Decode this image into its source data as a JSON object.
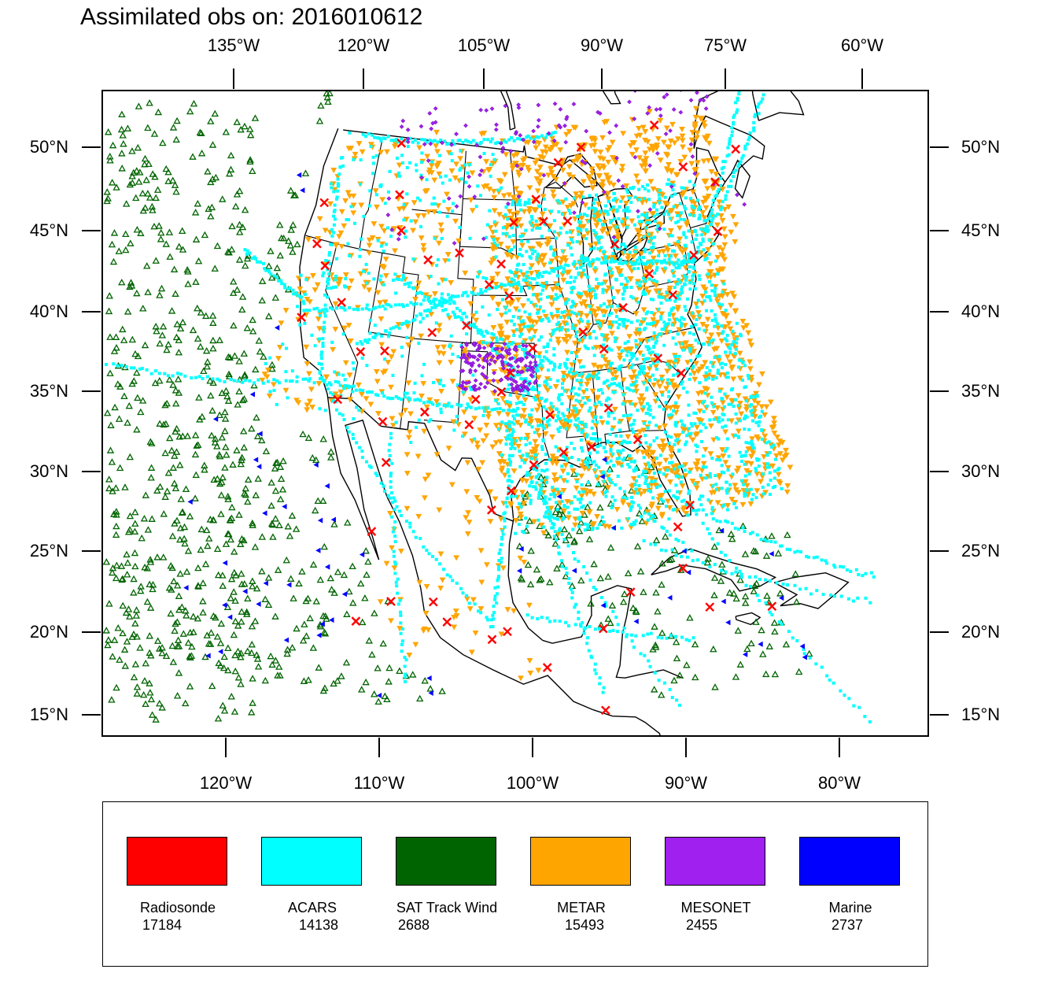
{
  "title": "Assimilated obs on: 2016010612",
  "map": {
    "top_lon_labels": [
      "135°W",
      "120°W",
      "105°W",
      "90°W",
      "75°W",
      "60°W"
    ],
    "bottom_lon_labels": [
      "120°W",
      "110°W",
      "100°W",
      "90°W",
      "80°W"
    ],
    "lat_labels": [
      "50°N",
      "45°N",
      "40°N",
      "35°N",
      "30°N",
      "25°N",
      "20°N",
      "15°N"
    ],
    "lat_values": [
      50,
      45,
      40,
      35,
      30,
      25,
      20,
      15
    ],
    "bottom_lon_values": [
      -120,
      -110,
      -100,
      -90,
      -80
    ],
    "top_lon_values": [
      -135,
      -120,
      -105,
      -90,
      -75,
      -60
    ],
    "extent": {
      "lon_min": -128,
      "lon_max": -74,
      "lat_min": 14,
      "lat_max": 53.5
    }
  },
  "legend": [
    {
      "id": "radiosonde",
      "name": "Radiosonde",
      "count": "17184",
      "color": "#ff0000",
      "marker": "x-mark"
    },
    {
      "id": "acars",
      "name": "ACARS",
      "count": "14138",
      "color": "#00ffff",
      "marker": "square"
    },
    {
      "id": "satwind",
      "name": "SAT Track Wind",
      "count": "2688",
      "color": "#006400",
      "marker": "triangle-up"
    },
    {
      "id": "metar",
      "name": "METAR",
      "count": "15493",
      "color": "#ffa500",
      "marker": "triangle-down"
    },
    {
      "id": "mesonet",
      "name": "MESONET",
      "count": "2455",
      "color": "#a020f0",
      "marker": "diamond"
    },
    {
      "id": "marine",
      "name": "Marine",
      "count": "2737",
      "color": "#0000ff",
      "marker": "triangle-left"
    }
  ]
}
